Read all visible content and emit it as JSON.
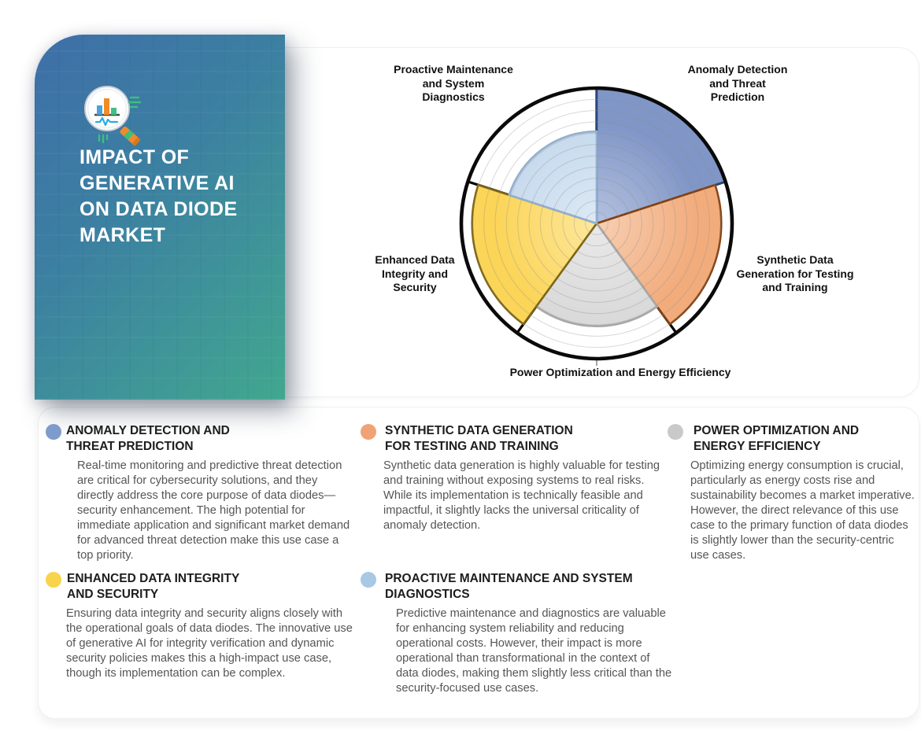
{
  "side_card": {
    "title": "IMPACT OF GENERATIVE AI ON DATA DIODE MARKET",
    "gradient_start": "#3e6fa8",
    "gradient_end": "#41a78f"
  },
  "chart_data": {
    "type": "polar_area",
    "title": "Impact of generative AI use cases on data diode market",
    "categories": [
      "Anomaly Detection and Threat Prediction",
      "Synthetic Data Generation for Testing and Training",
      "Power Optimization and Energy Efficiency",
      "Enhanced Data Integrity and Security",
      "Proactive Maintenance and System Diagnostics"
    ],
    "values": [
      1.0,
      0.92,
      0.76,
      0.92,
      0.68
    ],
    "value_units": "fraction of outer rim radius (relative impact)",
    "sector_angle_deg": 72,
    "start": "top",
    "direction": "clockwise",
    "colors": [
      "#8096C7",
      "#F2AC7C",
      "#D9D9D9",
      "#FBD557",
      "#C5D9ED"
    ],
    "edge_colors": [
      "#27477C",
      "#83400F",
      "#A8A8A8",
      "#7D6512",
      "#93AFCE"
    ],
    "rim_color": "#0a0a0a",
    "spoke_color": "#000000",
    "gridline_rings": 12,
    "grid_on": true,
    "legend_position": "around"
  },
  "legend": {
    "items": [
      {
        "title": "ANOMALY DETECTION AND THREAT PREDICTION",
        "color": "#7D9CCB",
        "body": "Real-time monitoring and predictive threat detection are critical for cybersecurity solutions, and they directly address the core purpose of data diodes—security enhancement. The high potential for immediate application and significant market demand for advanced threat detection make this use case a top priority."
      },
      {
        "title": "SYNTHETIC DATA GENERATION FOR TESTING AND TRAINING",
        "color": "#F0A275",
        "body": "Synthetic data generation is highly valuable for testing and training without exposing systems to real risks. While its implementation is technically feasible and impactful, it slightly lacks the universal criticality of anomaly detection."
      },
      {
        "title": "POWER OPTIMIZATION AND ENERGY EFFICIENCY",
        "color": "#C9C9C9",
        "body": "Optimizing energy consumption is crucial, particularly as energy costs rise and sustainability becomes a market imperative. However, the direct relevance of this use case to the primary function of data diodes is slightly lower than the security-centric use cases."
      },
      {
        "title": "ENHANCED DATA INTEGRITY AND SECURITY",
        "color": "#F8D34C",
        "body": "Ensuring data integrity and security aligns closely with the operational goals of data diodes. The innovative use of generative AI for integrity verification and dynamic security policies makes this a high-impact use case, though its implementation can be complex."
      },
      {
        "title": "PROACTIVE MAINTENANCE AND SYSTEM DIAGNOSTICS",
        "color": "#A9C8E4",
        "body": "Predictive maintenance and diagnostics are valuable for enhancing system reliability and reducing operational costs. However, their impact is more operational than transformational in the context of data diodes, making them slightly less critical than the security-focused use cases."
      }
    ]
  }
}
